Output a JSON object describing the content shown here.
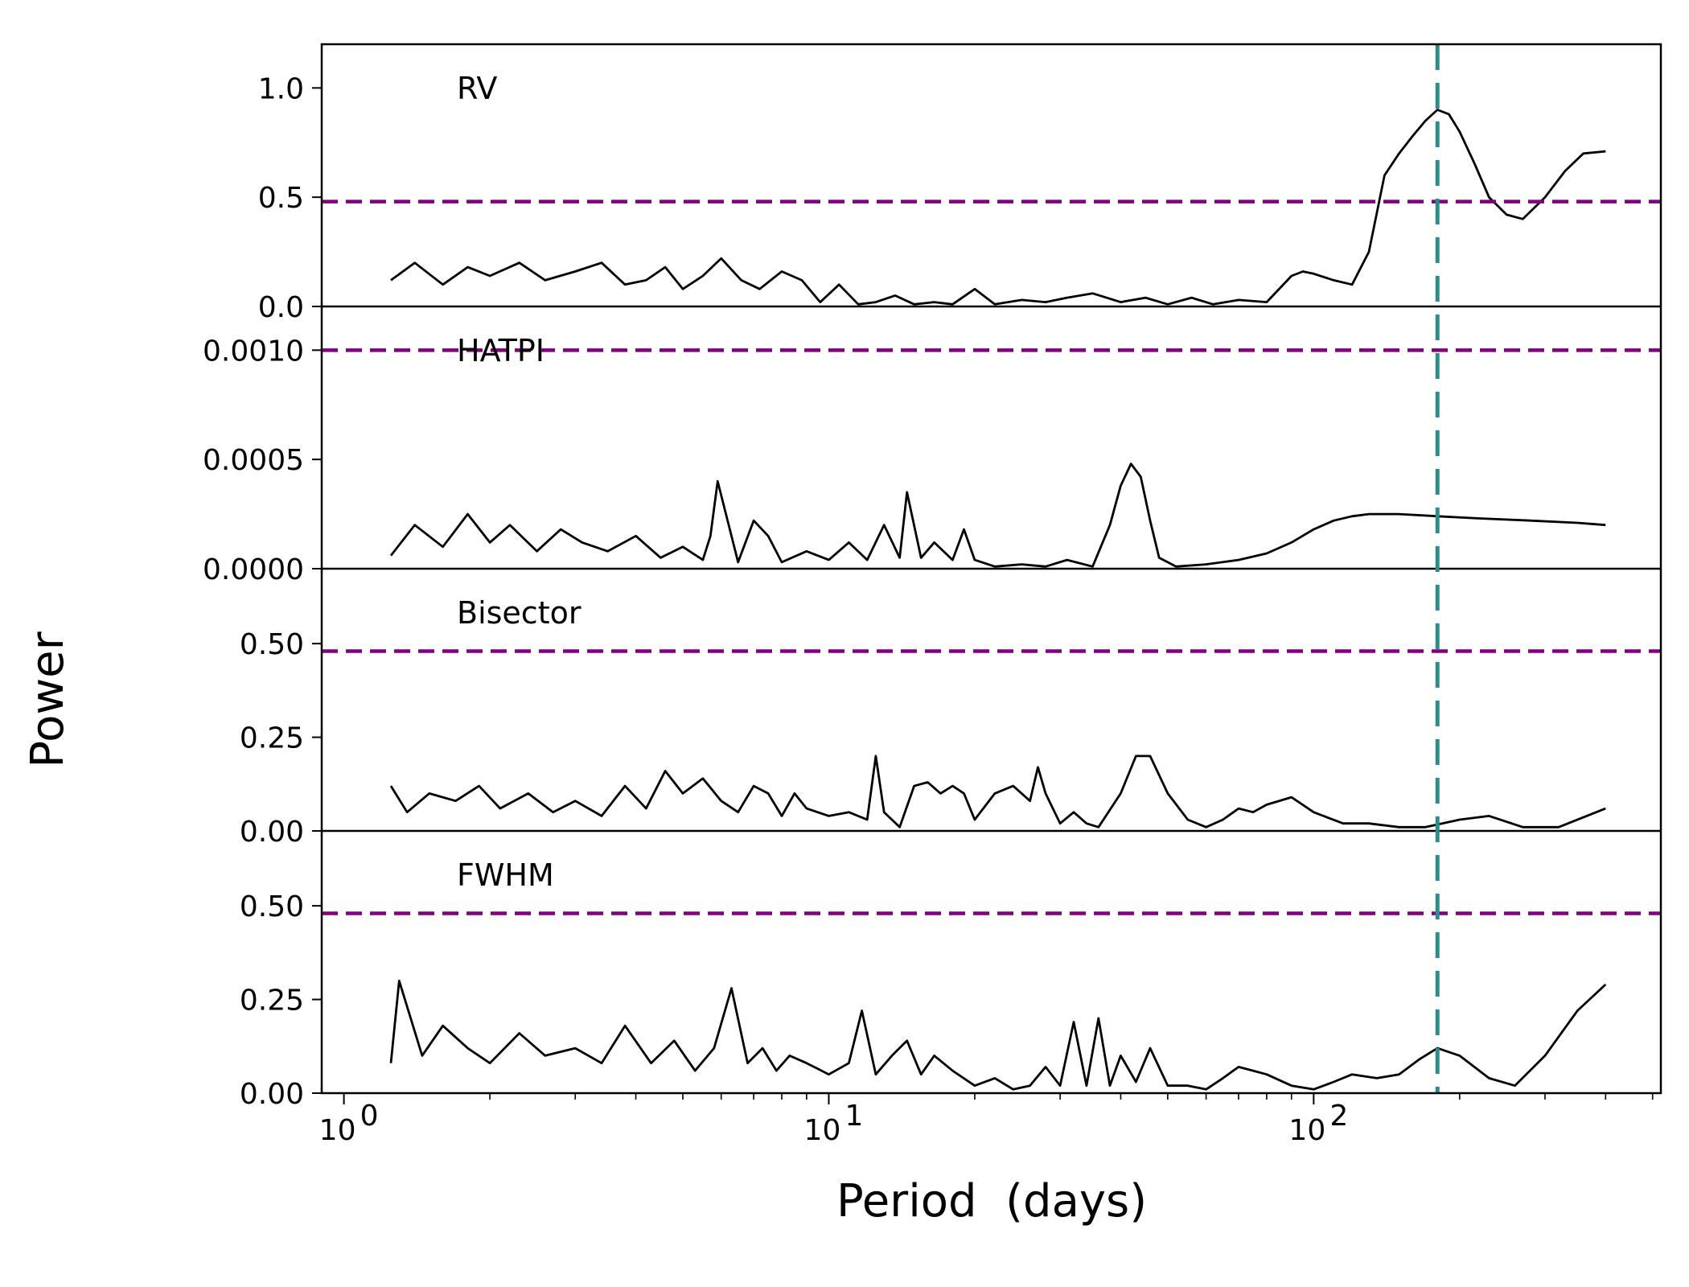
{
  "chart_data": {
    "type": "line",
    "xlabel": "Period  (days)",
    "ylabel": "Power",
    "xscale": "log",
    "xlim": [
      0.9,
      520
    ],
    "x_ticks": [
      {
        "value": 1,
        "base": "10",
        "exp": "0"
      },
      {
        "value": 10,
        "base": "10",
        "exp": "1"
      },
      {
        "value": 100,
        "base": "10",
        "exp": "2"
      }
    ],
    "vline": {
      "x": 180,
      "color": "#2e8b8b",
      "style": "dashed"
    },
    "threshold_color": "#800080",
    "line_color": "#000000",
    "panels": [
      {
        "label": "RV",
        "ylim": [
          0,
          1.2
        ],
        "yticks": [
          0,
          0.5,
          1.0
        ],
        "ytick_labels": [
          "0.0",
          "0.5",
          "1.0"
        ],
        "threshold": 0.48,
        "x": [
          1.25,
          1.4,
          1.6,
          1.8,
          2.0,
          2.3,
          2.6,
          3.0,
          3.4,
          3.8,
          4.2,
          4.6,
          5.0,
          5.5,
          6.0,
          6.6,
          7.2,
          8.0,
          8.8,
          9.6,
          10.5,
          11.5,
          12.5,
          13.7,
          15,
          16.5,
          18,
          20,
          22,
          25,
          28,
          31,
          35,
          40,
          45,
          50,
          56,
          62,
          70,
          80,
          90,
          95,
          100,
          110,
          120,
          130,
          140,
          150,
          160,
          170,
          180,
          190,
          200,
          215,
          230,
          250,
          270,
          300,
          330,
          360,
          400
        ],
        "y": [
          0.12,
          0.2,
          0.1,
          0.18,
          0.14,
          0.2,
          0.12,
          0.16,
          0.2,
          0.1,
          0.12,
          0.18,
          0.08,
          0.14,
          0.22,
          0.12,
          0.08,
          0.16,
          0.12,
          0.02,
          0.1,
          0.01,
          0.02,
          0.05,
          0.01,
          0.02,
          0.01,
          0.08,
          0.01,
          0.03,
          0.02,
          0.04,
          0.06,
          0.02,
          0.04,
          0.01,
          0.04,
          0.01,
          0.03,
          0.02,
          0.14,
          0.16,
          0.15,
          0.12,
          0.1,
          0.25,
          0.6,
          0.7,
          0.78,
          0.85,
          0.9,
          0.88,
          0.8,
          0.65,
          0.5,
          0.42,
          0.4,
          0.5,
          0.62,
          0.7,
          0.71
        ]
      },
      {
        "label": "HATPI",
        "ylim": [
          0,
          0.0012
        ],
        "yticks": [
          0,
          0.0005,
          0.001
        ],
        "ytick_labels": [
          "0.0000",
          "0.0005",
          "0.0010"
        ],
        "threshold": 0.001,
        "x": [
          1.25,
          1.4,
          1.6,
          1.8,
          2.0,
          2.2,
          2.5,
          2.8,
          3.1,
          3.5,
          4.0,
          4.5,
          5.0,
          5.5,
          5.7,
          5.9,
          6.5,
          7.0,
          7.5,
          8.0,
          9.0,
          10.0,
          11.0,
          12.0,
          13.0,
          14.0,
          14.5,
          15.5,
          16.5,
          18,
          19,
          20,
          22,
          25,
          28,
          31,
          35,
          38,
          40,
          42,
          44,
          46,
          48,
          52,
          60,
          70,
          80,
          90,
          100,
          110,
          120,
          130,
          150,
          180,
          220,
          280,
          350,
          400
        ],
        "y": [
          6e-05,
          0.0002,
          0.0001,
          0.00025,
          0.00012,
          0.0002,
          8e-05,
          0.00018,
          0.00012,
          8e-05,
          0.00015,
          5e-05,
          0.0001,
          4e-05,
          0.00015,
          0.0004,
          3e-05,
          0.00022,
          0.00015,
          3e-05,
          8e-05,
          4e-05,
          0.00012,
          4e-05,
          0.0002,
          5e-05,
          0.00035,
          5e-05,
          0.00012,
          4e-05,
          0.00018,
          4e-05,
          1e-05,
          2e-05,
          1e-05,
          4e-05,
          1e-05,
          0.0002,
          0.00038,
          0.00048,
          0.00042,
          0.00022,
          5e-05,
          1e-05,
          2e-05,
          4e-05,
          7e-05,
          0.00012,
          0.00018,
          0.00022,
          0.00024,
          0.00025,
          0.00025,
          0.00024,
          0.00023,
          0.00022,
          0.00021,
          0.0002
        ]
      },
      {
        "label": "Bisector",
        "ylim": [
          0,
          0.7
        ],
        "yticks": [
          0,
          0.25,
          0.5
        ],
        "ytick_labels": [
          "0.00",
          "0.25",
          "0.50"
        ],
        "threshold": 0.48,
        "x": [
          1.25,
          1.35,
          1.5,
          1.7,
          1.9,
          2.1,
          2.4,
          2.7,
          3.0,
          3.4,
          3.8,
          4.2,
          4.6,
          5.0,
          5.5,
          6.0,
          6.5,
          7.0,
          7.5,
          8.0,
          8.5,
          9.0,
          10,
          11,
          12,
          12.5,
          13,
          14,
          15,
          16,
          17,
          18,
          19,
          20,
          22,
          24,
          26,
          27,
          28,
          30,
          32,
          34,
          36,
          40,
          43,
          46,
          50,
          55,
          60,
          65,
          70,
          75,
          80,
          90,
          100,
          115,
          130,
          150,
          170,
          200,
          230,
          270,
          320,
          400
        ],
        "y": [
          0.12,
          0.05,
          0.1,
          0.08,
          0.12,
          0.06,
          0.1,
          0.05,
          0.08,
          0.04,
          0.12,
          0.06,
          0.16,
          0.1,
          0.14,
          0.08,
          0.05,
          0.12,
          0.1,
          0.04,
          0.1,
          0.06,
          0.04,
          0.05,
          0.03,
          0.2,
          0.05,
          0.01,
          0.12,
          0.13,
          0.1,
          0.12,
          0.1,
          0.03,
          0.1,
          0.12,
          0.08,
          0.17,
          0.1,
          0.02,
          0.05,
          0.02,
          0.01,
          0.1,
          0.2,
          0.2,
          0.1,
          0.03,
          0.01,
          0.03,
          0.06,
          0.05,
          0.07,
          0.09,
          0.05,
          0.02,
          0.02,
          0.01,
          0.01,
          0.03,
          0.04,
          0.01,
          0.01,
          0.06
        ]
      },
      {
        "label": "FWHM",
        "ylim": [
          0,
          0.7
        ],
        "yticks": [
          0,
          0.25,
          0.5
        ],
        "ytick_labels": [
          "0.00",
          "0.25",
          "0.50"
        ],
        "threshold": 0.48,
        "x": [
          1.25,
          1.3,
          1.45,
          1.6,
          1.8,
          2.0,
          2.3,
          2.6,
          3.0,
          3.4,
          3.8,
          4.3,
          4.8,
          5.3,
          5.8,
          6.3,
          6.8,
          7.3,
          7.8,
          8.3,
          9.0,
          10,
          11,
          11.7,
          12.5,
          13.5,
          14.5,
          15.5,
          16.5,
          18,
          20,
          22,
          24,
          26,
          28,
          30,
          32,
          34,
          36,
          38,
          40,
          43,
          46,
          50,
          55,
          60,
          65,
          70,
          75,
          80,
          90,
          100,
          110,
          120,
          135,
          150,
          165,
          180,
          200,
          230,
          260,
          300,
          350,
          400
        ],
        "y": [
          0.08,
          0.3,
          0.1,
          0.18,
          0.12,
          0.08,
          0.16,
          0.1,
          0.12,
          0.08,
          0.18,
          0.08,
          0.14,
          0.06,
          0.12,
          0.28,
          0.08,
          0.12,
          0.06,
          0.1,
          0.08,
          0.05,
          0.08,
          0.22,
          0.05,
          0.1,
          0.14,
          0.05,
          0.1,
          0.06,
          0.02,
          0.04,
          0.01,
          0.02,
          0.07,
          0.02,
          0.19,
          0.02,
          0.2,
          0.02,
          0.1,
          0.03,
          0.12,
          0.02,
          0.02,
          0.01,
          0.04,
          0.07,
          0.06,
          0.05,
          0.02,
          0.01,
          0.03,
          0.05,
          0.04,
          0.05,
          0.09,
          0.12,
          0.1,
          0.04,
          0.02,
          0.1,
          0.22,
          0.29
        ]
      }
    ]
  }
}
